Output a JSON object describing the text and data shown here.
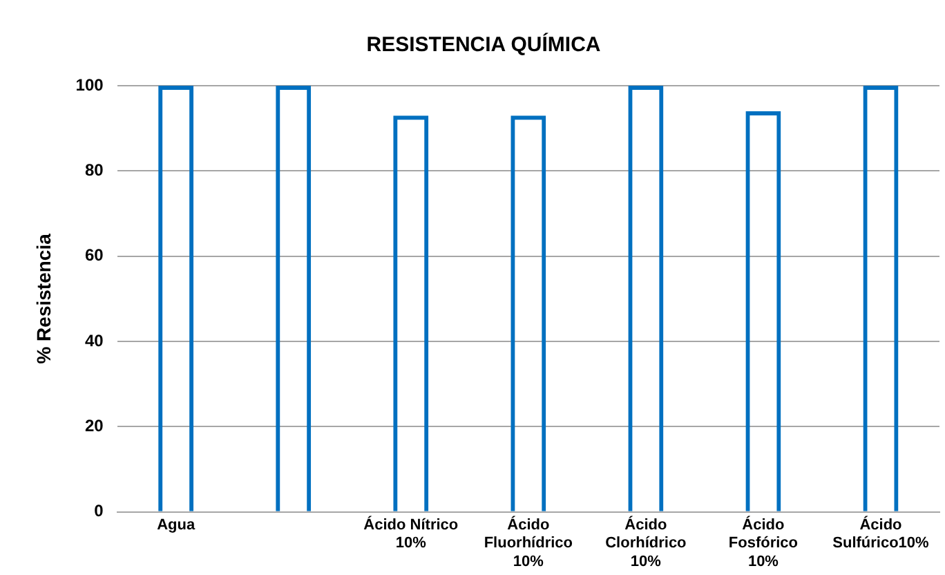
{
  "chart_data": {
    "type": "bar",
    "title": "RESISTENCIA QUÍMICA",
    "ylabel": "% Resistencia",
    "categories": [
      "Agua",
      null,
      "Ácido Nítrico 10%",
      "Ácido Fluorhídrico 10%",
      "Ácido Clorhídrico 10%",
      "Ácido Fosfórico 10%",
      "Ácido Sulfúrico10%"
    ],
    "values": [
      100,
      100,
      93,
      93,
      100,
      94,
      100
    ],
    "color": "#0070c0",
    "ylim": [
      0,
      100
    ],
    "yticks": [
      0,
      20,
      40,
      60,
      80,
      100
    ],
    "grid": "y",
    "legend": false
  }
}
